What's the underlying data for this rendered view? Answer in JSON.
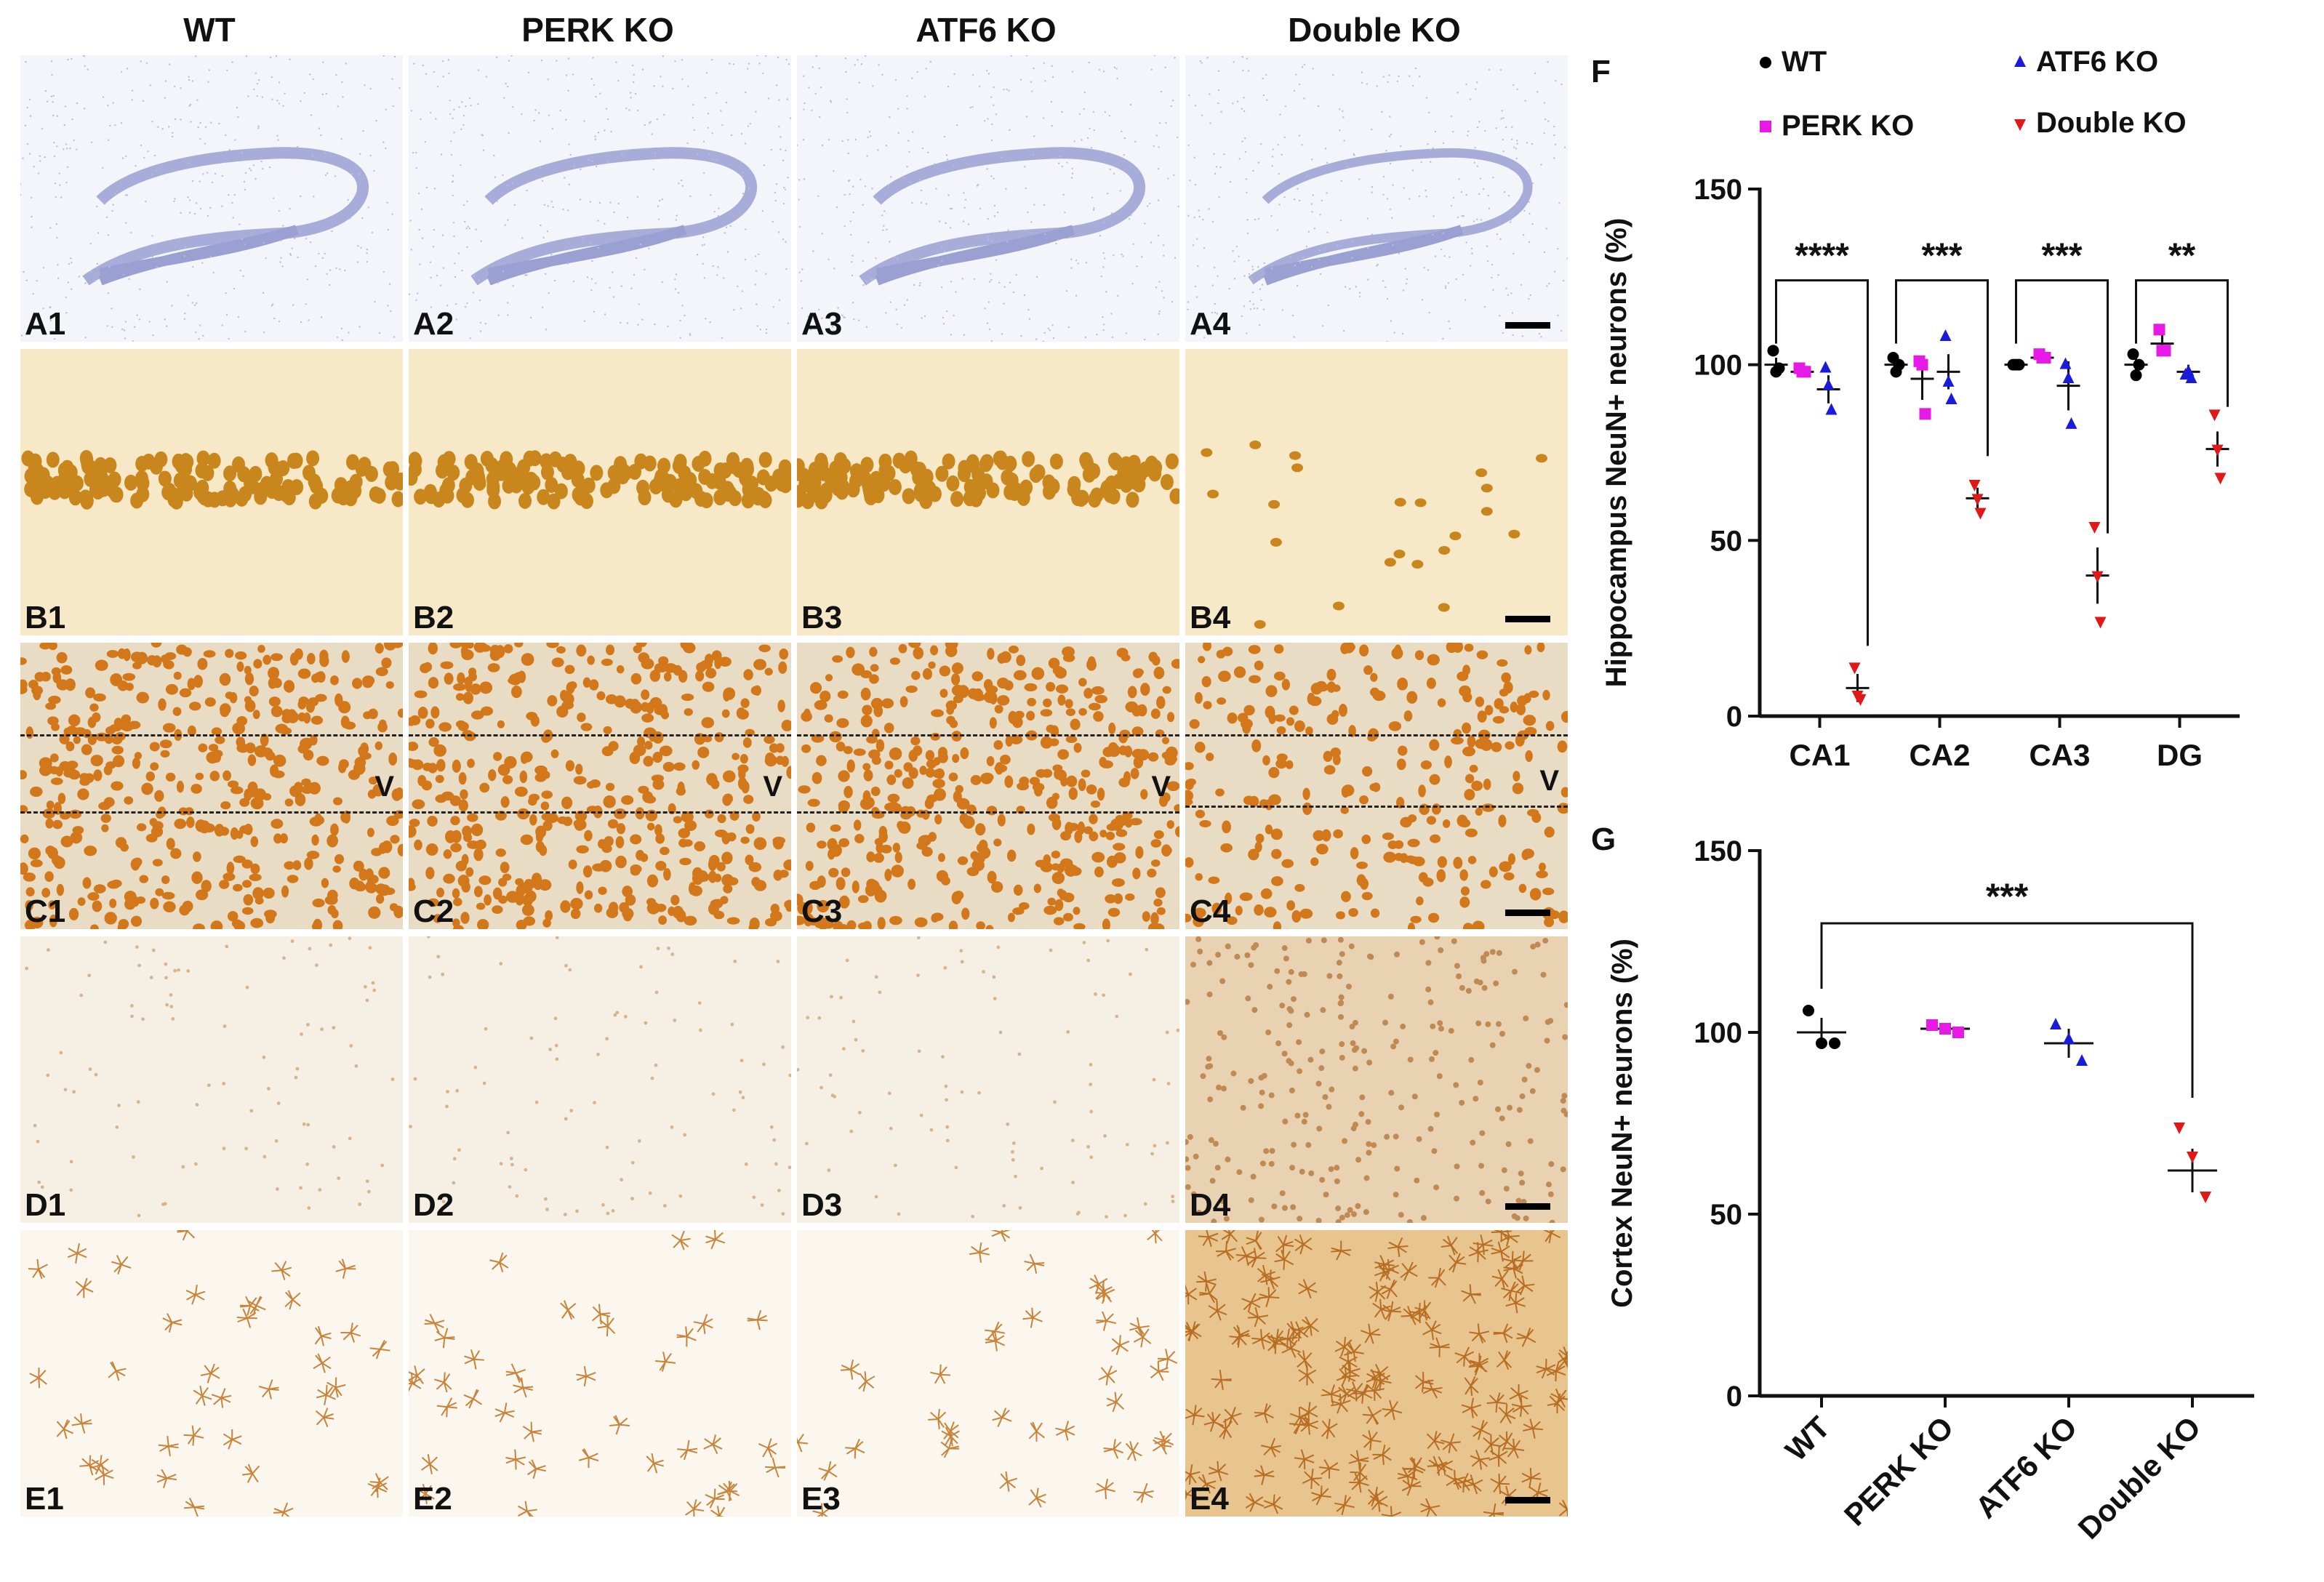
{
  "columns": [
    "WT",
    "PERK KO",
    "ATF6 KO",
    "Double KO"
  ],
  "rows": [
    {
      "id": "A",
      "labels": [
        "A1",
        "A2",
        "A3",
        "A4"
      ],
      "stain": "nissl"
    },
    {
      "id": "B",
      "labels": [
        "B1",
        "B2",
        "B3",
        "B4"
      ],
      "stain": "neun-ca1"
    },
    {
      "id": "C",
      "labels": [
        "C1",
        "C2",
        "C3",
        "C4"
      ],
      "stain": "neun-cortex",
      "layer_mark": "V"
    },
    {
      "id": "D",
      "labels": [
        "D1",
        "D2",
        "D3",
        "D4"
      ],
      "stain": "microglia"
    },
    {
      "id": "E",
      "labels": [
        "E1",
        "E2",
        "E3",
        "E4"
      ],
      "stain": "astrocyte"
    }
  ],
  "colors": {
    "wt": "#000000",
    "perk": "#e619e6",
    "atf6": "#1a1adb",
    "double": "#e01818"
  },
  "chart_data": [
    {
      "panel": "F",
      "type": "scatter",
      "ylabel": "Hippocampus NeuN+ neurons (%)",
      "ylim": [
        0,
        150
      ],
      "yticks": [
        0,
        50,
        100,
        150
      ],
      "categories": [
        "CA1",
        "CA2",
        "CA3",
        "DG"
      ],
      "legend": [
        "WT",
        "ATF6 KO",
        "PERK KO",
        "Double KO"
      ],
      "series": [
        {
          "name": "WT",
          "means": [
            100,
            100,
            100,
            100
          ],
          "sems": [
            2,
            2,
            1,
            2
          ],
          "points": [
            [
              104,
              98,
              99
            ],
            [
              102,
              98,
              100
            ],
            [
              100,
              100,
              100
            ],
            [
              103,
              97,
              100
            ]
          ]
        },
        {
          "name": "PERK KO",
          "means": [
            98,
            96,
            102,
            106
          ],
          "sems": [
            1,
            6,
            1,
            3
          ],
          "points": [
            [
              99,
              98,
              98
            ],
            [
              101,
              100,
              86
            ],
            [
              103,
              102,
              102
            ],
            [
              110,
              104,
              104
            ]
          ]
        },
        {
          "name": "ATF6 KO",
          "means": [
            93,
            98,
            94,
            98
          ],
          "sems": [
            4,
            5,
            7,
            2
          ],
          "points": [
            [
              99,
              94,
              87
            ],
            [
              108,
              95,
              90
            ],
            [
              100,
              96,
              83
            ],
            [
              97,
              98,
              96
            ]
          ]
        },
        {
          "name": "Double KO",
          "means": [
            8,
            62,
            40,
            76
          ],
          "sems": [
            4,
            3,
            8,
            5
          ],
          "points": [
            [
              14,
              6,
              5
            ],
            [
              66,
              62,
              58
            ],
            [
              54,
              40,
              27
            ],
            [
              86,
              76,
              68
            ]
          ]
        }
      ],
      "significance": [
        {
          "category": "CA1",
          "label": "****"
        },
        {
          "category": "CA2",
          "label": "***"
        },
        {
          "category": "CA3",
          "label": "***"
        },
        {
          "category": "DG",
          "label": "**"
        }
      ]
    },
    {
      "panel": "G",
      "type": "scatter",
      "ylabel": "Cortex NeuN+ neurons (%)",
      "ylim": [
        0,
        150
      ],
      "yticks": [
        0,
        50,
        100,
        150
      ],
      "categories": [
        "WT",
        "PERK KO",
        "ATF6 KO",
        "Double KO"
      ],
      "means": [
        100,
        101,
        97,
        62
      ],
      "sems": [
        4,
        1,
        4,
        6
      ],
      "points": [
        [
          106,
          97,
          97
        ],
        [
          102,
          101,
          100
        ],
        [
          102,
          98,
          92
        ],
        [
          74,
          66,
          55
        ]
      ],
      "significance": {
        "from": "WT",
        "to": "Double KO",
        "label": "***"
      }
    }
  ],
  "panel_letters": {
    "F": "F",
    "G": "G"
  }
}
